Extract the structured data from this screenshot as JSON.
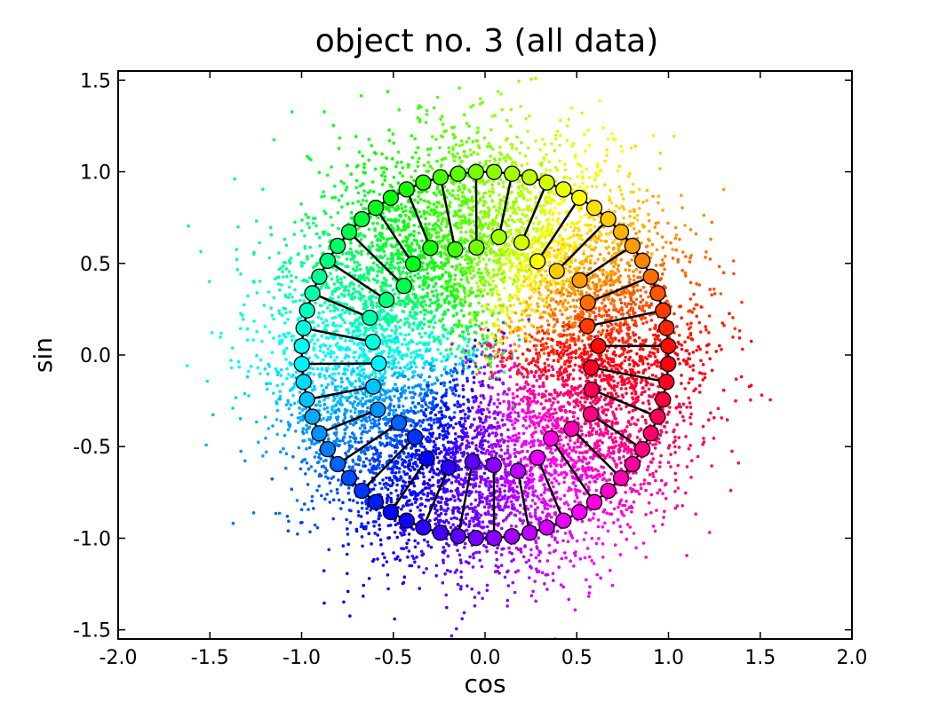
{
  "chart_data": {
    "type": "scatter",
    "title": "object no. 3 (all data)",
    "xlabel": "cos",
    "ylabel": "sin",
    "xlim": [
      -2.0,
      2.0
    ],
    "ylim": [
      -1.55,
      1.55
    ],
    "x_ticks": [
      "-2.0",
      "-1.5",
      "-1.0",
      "-0.5",
      "0.0",
      "0.5",
      "1.0",
      "1.5",
      "2.0"
    ],
    "y_ticks": [
      "1.5",
      "1.0",
      "0.5",
      "0.0",
      "-0.5",
      "-1.0",
      "-1.5"
    ],
    "x_tick_values": [
      -2.0,
      -1.5,
      -1.0,
      -0.5,
      0.0,
      0.5,
      1.0,
      1.5,
      2.0
    ],
    "y_tick_values": [
      1.5,
      1.0,
      0.5,
      0.0,
      -0.5,
      -1.0,
      -1.5
    ],
    "grid": false,
    "legend": "none",
    "color_encoding": "hue by angle (rainbow)",
    "scatter_cloud": {
      "description": "dense cloud of small points around the unit circle, colored by angle",
      "approx_points": 9000,
      "center_radius": 0.75,
      "spread": 0.28
    },
    "nodes": {
      "count": 64,
      "outer_ring_radius": 1.0,
      "inner_ring_radius": 0.62,
      "connections": "outer ring polyline with spokes to inner nodes"
    }
  }
}
